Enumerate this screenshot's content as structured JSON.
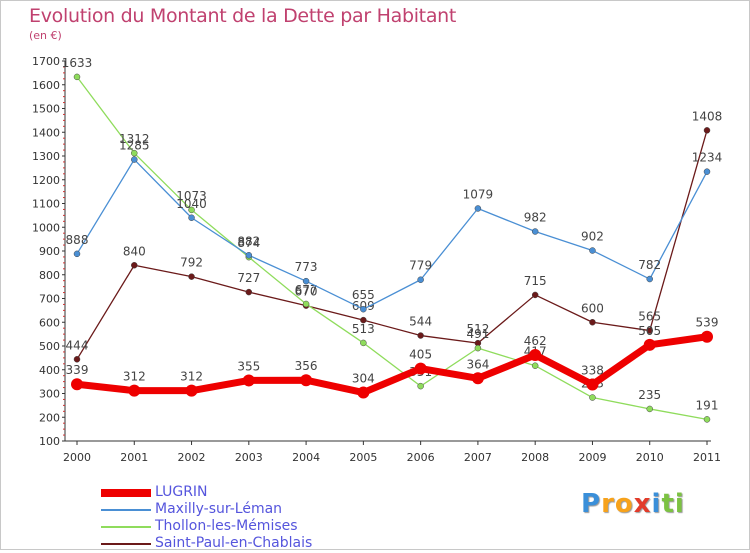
{
  "chart_data": {
    "type": "line",
    "title": "Evolution du Montant de la Dette par Habitant",
    "subtitle": "(en €)",
    "x": [
      "2000",
      "2001",
      "2002",
      "2003",
      "2004",
      "2005",
      "2006",
      "2007",
      "2008",
      "2009",
      "2010",
      "2011"
    ],
    "ylim": [
      100,
      1700
    ],
    "yticks": [
      100,
      200,
      300,
      400,
      500,
      600,
      700,
      800,
      900,
      1000,
      1100,
      1200,
      1300,
      1400,
      1500,
      1600,
      1700
    ],
    "grid": false,
    "legend_position": "bottom-left",
    "series": [
      {
        "name": "Saint-Paul-en-Chablais",
        "color": "#6b1a1a",
        "values": [
          444,
          840,
          792,
          727,
          670,
          609,
          544,
          512,
          715,
          600,
          565,
          1408
        ]
      },
      {
        "name": "Thollon-les-Mémises",
        "color": "#8fdc5c",
        "values": [
          1633,
          1312,
          1073,
          874,
          677,
          513,
          331,
          491,
          417,
          283,
          235,
          191
        ]
      },
      {
        "name": "Maxilly-sur-Léman",
        "color": "#4a8fd4",
        "values": [
          888,
          1285,
          1040,
          882,
          773,
          655,
          779,
          1079,
          982,
          902,
          782,
          1234
        ]
      },
      {
        "name": "LUGRIN",
        "color": "#ee0000",
        "values": [
          339,
          312,
          312,
          355,
          356,
          304,
          405,
          364,
          462,
          338,
          505,
          539
        ]
      }
    ],
    "legend": [
      "LUGRIN",
      "Maxilly-sur-Léman",
      "Thollon-les-Mémises",
      "Saint-Paul-en-Chablais"
    ]
  },
  "brand": {
    "letters": [
      "P",
      "r",
      "o",
      "x",
      "i",
      "t",
      "i"
    ],
    "colors": [
      "#3a8fd9",
      "#f7a21b",
      "#f7a21b",
      "#e23b2a",
      "#3a8fd9",
      "#7cc242",
      "#7cc242"
    ]
  }
}
